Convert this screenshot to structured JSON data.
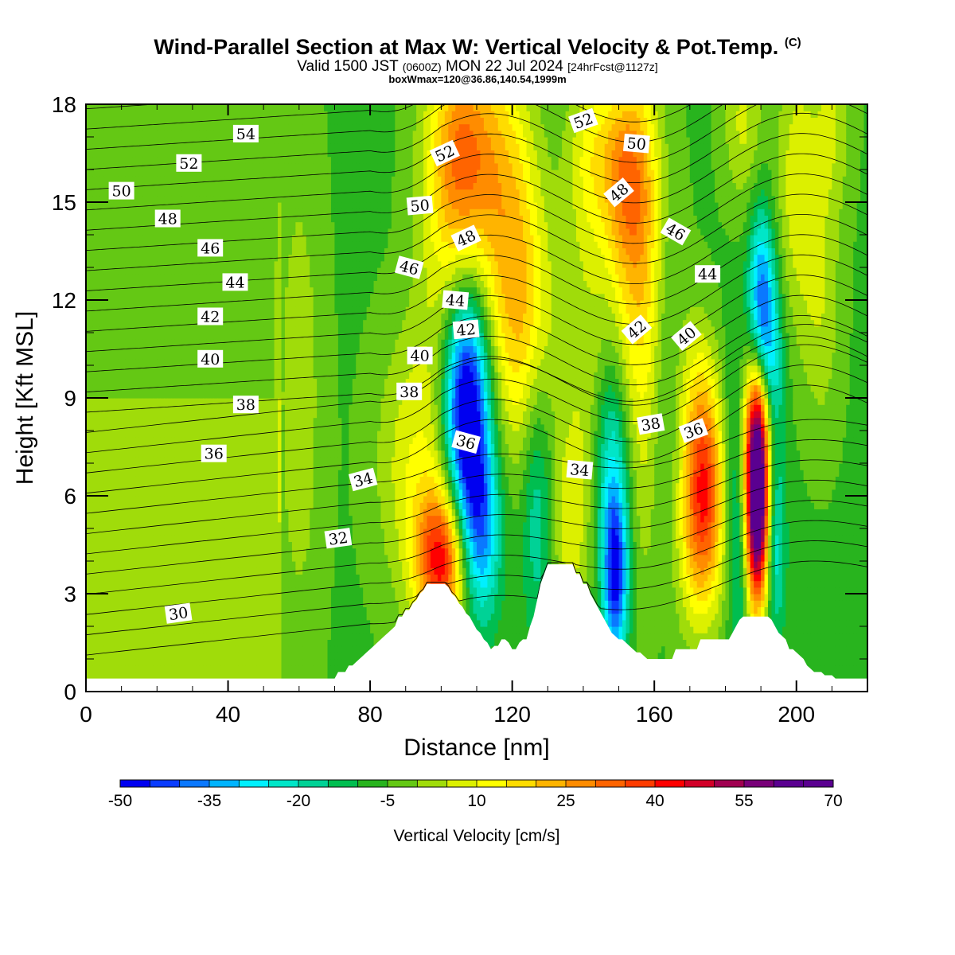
{
  "title": {
    "main": "Wind-Parallel Section at Max W: Vertical Velocity & Pot.Temp.",
    "copyright": "(C)",
    "valid_prefix": "Valid 1500 JST",
    "valid_utc": "(0600Z)",
    "valid_date": "MON 22 Jul 2024",
    "forecast": "[24hrFcst@1127z]",
    "box_info": "boxWmax=120@36.86,140.54,1999m"
  },
  "colors": {
    "background": "#ffffff",
    "terrain": "#ffffff",
    "contour": "#000000",
    "scale": [
      "#0000f0",
      "#0a3cff",
      "#0a78ff",
      "#00b4ff",
      "#00f0ff",
      "#00e6c8",
      "#00d296",
      "#00be50",
      "#28b41e",
      "#64c814",
      "#a0dc0a",
      "#dcf000",
      "#ffff00",
      "#ffdc00",
      "#ffb400",
      "#ff8c00",
      "#ff6400",
      "#ff3c00",
      "#ff0000",
      "#d20028",
      "#a00050",
      "#780078",
      "#5a0090"
    ]
  },
  "chart_data": {
    "type": "heatmap",
    "title": "Wind-Parallel Section at Max W: Vertical Velocity & Pot.Temp.",
    "xlabel": "Distance [nm]",
    "ylabel": "Height [Kft MSL]",
    "xlim": [
      0,
      220
    ],
    "ylim": [
      0,
      18
    ],
    "xticks": [
      0,
      40,
      80,
      120,
      160,
      200
    ],
    "yticks": [
      0,
      3,
      6,
      9,
      12,
      15,
      18
    ],
    "colorbar": {
      "label": "Vertical Velocity [cm/s]",
      "min": -50,
      "max": 70,
      "step": 5,
      "tick_labels": [
        "-50",
        "-35",
        "-20",
        "-5",
        "10",
        "25",
        "40",
        "55",
        "70"
      ]
    },
    "velocity_cells": [
      {
        "x": 60,
        "y": 9.0,
        "w": 9,
        "sx": 5,
        "sy": 6
      },
      {
        "x": 100,
        "y": 4.0,
        "w": 45,
        "sx": 5,
        "sy": 1.6
      },
      {
        "x": 93,
        "y": 7.0,
        "w": 15,
        "sx": 8,
        "sy": 3
      },
      {
        "x": 106,
        "y": 16.5,
        "w": 35,
        "sx": 7,
        "sy": 2.5
      },
      {
        "x": 102,
        "y": 12.0,
        "w": 10,
        "sx": 6,
        "sy": 3
      },
      {
        "x": 107,
        "y": 8.8,
        "w": -55,
        "sx": 4.5,
        "sy": 2.5
      },
      {
        "x": 111,
        "y": 5.0,
        "w": -30,
        "sx": 4,
        "sy": 2
      },
      {
        "x": 119,
        "y": 14.0,
        "w": 22,
        "sx": 6,
        "sy": 4
      },
      {
        "x": 125,
        "y": 11.0,
        "w": 14,
        "sx": 6,
        "sy": 3
      },
      {
        "x": 127,
        "y": 6.0,
        "w": -15,
        "sx": 3,
        "sy": 3
      },
      {
        "x": 136,
        "y": 5.0,
        "w": 12,
        "sx": 3.5,
        "sy": 2
      },
      {
        "x": 141,
        "y": 9.5,
        "w": 10,
        "sx": 5,
        "sy": 4
      },
      {
        "x": 142,
        "y": 16.5,
        "w": 14,
        "sx": 5,
        "sy": 2
      },
      {
        "x": 148,
        "y": 7.0,
        "w": -22,
        "sx": 3.5,
        "sy": 2.5
      },
      {
        "x": 149,
        "y": 3.5,
        "w": -38,
        "sx": 2.5,
        "sy": 1.8
      },
      {
        "x": 156,
        "y": 13.0,
        "w": 25,
        "sx": 6,
        "sy": 4
      },
      {
        "x": 152,
        "y": 16.0,
        "w": 22,
        "sx": 5,
        "sy": 2
      },
      {
        "x": 157,
        "y": 5.5,
        "w": 5,
        "sx": 3,
        "sy": 3
      },
      {
        "x": 163,
        "y": 11.0,
        "w": -8,
        "sx": 3,
        "sy": 4
      },
      {
        "x": 174,
        "y": 6.2,
        "w": 38,
        "sx": 4,
        "sy": 2.2
      },
      {
        "x": 172,
        "y": 4.0,
        "w": 12,
        "sx": 5,
        "sy": 2
      },
      {
        "x": 172,
        "y": 9.0,
        "w": 12,
        "sx": 4,
        "sy": 2
      },
      {
        "x": 182,
        "y": 7.0,
        "w": -8,
        "sx": 2,
        "sy": 3
      },
      {
        "x": 189,
        "y": 5.8,
        "w": 85,
        "sx": 2.4,
        "sy": 2.2
      },
      {
        "x": 189,
        "y": 8.5,
        "w": 25,
        "sx": 2.5,
        "sy": 1.5
      },
      {
        "x": 184,
        "y": 4.0,
        "w": -12,
        "sx": 1.8,
        "sy": 2
      },
      {
        "x": 194,
        "y": 4.5,
        "w": -20,
        "sx": 2,
        "sy": 2
      },
      {
        "x": 190,
        "y": 12.0,
        "w": -30,
        "sx": 2.5,
        "sy": 2
      },
      {
        "x": 193,
        "y": 10.0,
        "w": -18,
        "sx": 2.5,
        "sy": 2
      },
      {
        "x": 200,
        "y": 15.5,
        "w": 14,
        "sx": 4,
        "sy": 3
      },
      {
        "x": 207,
        "y": 12.0,
        "w": 10,
        "sx": 4,
        "sy": 3
      },
      {
        "x": 210,
        "y": 17.5,
        "w": 10,
        "sx": 4,
        "sy": 2
      },
      {
        "x": 185,
        "y": 17.5,
        "w": 12,
        "sx": 4,
        "sy": 2
      }
    ],
    "potential_temperature_labels": [
      {
        "text": "54",
        "x": 45,
        "y": 17.1,
        "angle": 0
      },
      {
        "text": "52",
        "x": 29,
        "y": 16.2,
        "angle": 0
      },
      {
        "text": "50",
        "x": 10,
        "y": 15.35,
        "angle": 0
      },
      {
        "text": "48",
        "x": 23,
        "y": 14.5,
        "angle": 0
      },
      {
        "text": "46",
        "x": 35,
        "y": 13.6,
        "angle": 0
      },
      {
        "text": "44",
        "x": 42,
        "y": 12.55,
        "angle": 0
      },
      {
        "text": "42",
        "x": 35,
        "y": 11.5,
        "angle": 0
      },
      {
        "text": "40",
        "x": 35,
        "y": 10.2,
        "angle": 0
      },
      {
        "text": "38",
        "x": 45,
        "y": 8.8,
        "angle": 0
      },
      {
        "text": "36",
        "x": 36,
        "y": 7.3,
        "angle": 0
      },
      {
        "text": "34",
        "x": 78,
        "y": 6.5,
        "angle": -15
      },
      {
        "text": "32",
        "x": 71,
        "y": 4.7,
        "angle": -8
      },
      {
        "text": "30",
        "x": 26,
        "y": 2.4,
        "angle": -8
      },
      {
        "text": "52",
        "x": 101,
        "y": 16.5,
        "angle": -25
      },
      {
        "text": "50",
        "x": 94,
        "y": 14.9,
        "angle": -5
      },
      {
        "text": "48",
        "x": 107,
        "y": 13.9,
        "angle": -25
      },
      {
        "text": "46",
        "x": 91,
        "y": 13.0,
        "angle": 15
      },
      {
        "text": "44",
        "x": 104,
        "y": 12.0,
        "angle": 5
      },
      {
        "text": "42",
        "x": 107,
        "y": 11.1,
        "angle": -5
      },
      {
        "text": "40",
        "x": 94,
        "y": 10.3,
        "angle": 0
      },
      {
        "text": "38",
        "x": 91,
        "y": 9.2,
        "angle": 0
      },
      {
        "text": "36",
        "x": 107,
        "y": 7.65,
        "angle": 15
      },
      {
        "text": "34",
        "x": 139,
        "y": 6.8,
        "angle": 5
      },
      {
        "text": "52",
        "x": 140,
        "y": 17.5,
        "angle": -20
      },
      {
        "text": "50",
        "x": 155,
        "y": 16.8,
        "angle": 5
      },
      {
        "text": "48",
        "x": 150,
        "y": 15.3,
        "angle": -40
      },
      {
        "text": "46",
        "x": 166,
        "y": 14.1,
        "angle": 30
      },
      {
        "text": "44",
        "x": 175,
        "y": 12.8,
        "angle": 0
      },
      {
        "text": "42",
        "x": 155,
        "y": 11.1,
        "angle": -40
      },
      {
        "text": "40",
        "x": 169,
        "y": 10.9,
        "angle": -40
      },
      {
        "text": "38",
        "x": 159,
        "y": 8.2,
        "angle": -10
      },
      {
        "text": "36",
        "x": 171,
        "y": 8.0,
        "angle": -20
      }
    ],
    "terrain_profile": {
      "x": [
        0,
        70,
        71,
        72,
        73,
        74,
        75,
        76,
        77,
        78,
        79,
        80,
        81,
        82,
        83,
        84,
        85,
        86,
        87,
        88,
        89,
        90,
        91,
        92,
        93,
        94,
        95,
        96,
        97,
        98,
        99,
        100,
        101,
        102,
        103,
        104,
        105,
        106,
        107,
        108,
        109,
        110,
        111,
        112,
        113,
        114,
        115,
        116,
        117,
        118,
        119,
        120,
        121,
        122,
        123,
        124,
        125,
        126,
        127,
        128,
        129,
        130,
        131,
        132,
        133,
        134,
        135,
        136,
        137,
        138,
        139,
        140,
        141,
        142,
        143,
        144,
        145,
        146,
        147,
        148,
        149,
        150,
        151,
        152,
        153,
        154,
        155,
        156,
        157,
        158,
        159,
        160,
        161,
        162,
        163,
        164,
        165,
        166,
        167,
        168,
        169,
        170,
        171,
        172,
        173,
        174,
        175,
        176,
        177,
        178,
        179,
        180,
        181,
        182,
        183,
        184,
        185,
        186,
        187,
        188,
        189,
        190,
        191,
        192,
        193,
        194,
        195,
        196,
        197,
        198,
        199,
        200,
        201,
        202,
        203,
        204,
        205,
        206,
        207,
        208,
        209,
        210,
        211,
        212,
        213,
        214,
        215,
        216,
        217,
        218,
        219,
        220
      ],
      "y": [
        0.4,
        0.4,
        0.6,
        0.6,
        0.6,
        0.8,
        0.8,
        0.9,
        1.0,
        1.1,
        1.2,
        1.3,
        1.4,
        1.5,
        1.6,
        1.7,
        1.8,
        1.9,
        2.0,
        2.3,
        2.3,
        2.5,
        2.5,
        2.7,
        2.8,
        3.0,
        3.1,
        3.3,
        3.3,
        3.3,
        3.3,
        3.3,
        3.3,
        3.2,
        3.0,
        2.9,
        2.7,
        2.6,
        2.4,
        2.3,
        2.1,
        1.9,
        1.8,
        1.6,
        1.5,
        1.3,
        1.4,
        1.4,
        1.6,
        1.6,
        1.5,
        1.3,
        1.3,
        1.5,
        1.6,
        1.6,
        2.0,
        2.3,
        2.8,
        3.3,
        3.6,
        3.9,
        3.9,
        3.9,
        3.9,
        3.9,
        3.9,
        3.9,
        3.9,
        3.6,
        3.6,
        3.3,
        3.3,
        3.0,
        2.8,
        2.6,
        2.4,
        2.2,
        2.0,
        1.8,
        1.7,
        1.6,
        1.6,
        1.5,
        1.4,
        1.3,
        1.2,
        1.2,
        1.1,
        1.0,
        1.0,
        1.0,
        1.0,
        1.0,
        1.0,
        1.0,
        1.0,
        1.3,
        1.3,
        1.3,
        1.3,
        1.3,
        1.3,
        1.3,
        1.6,
        1.6,
        1.6,
        1.6,
        1.6,
        1.6,
        1.6,
        1.6,
        1.6,
        1.8,
        2.0,
        2.2,
        2.3,
        2.3,
        2.3,
        2.3,
        2.3,
        2.3,
        2.3,
        2.3,
        2.2,
        2.0,
        1.8,
        1.7,
        1.6,
        1.3,
        1.3,
        1.2,
        1.1,
        1.0,
        0.8,
        0.7,
        0.6,
        0.6,
        0.6,
        0.5,
        0.5,
        0.5,
        0.4,
        0.4,
        0.4,
        0.4,
        0.4,
        0.4,
        0.4,
        0.4,
        0.4,
        0.4
      ]
    },
    "grid": false,
    "legend": "bottom"
  }
}
